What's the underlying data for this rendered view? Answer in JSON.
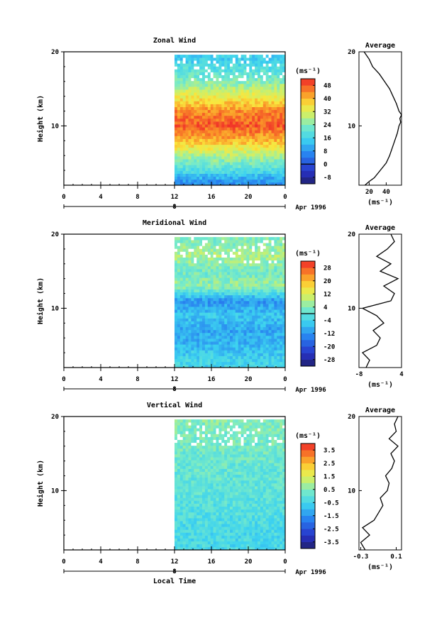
{
  "figure": {
    "xlabel_bottom": "Local Time",
    "date_label": "Apr 1996",
    "date_marker": "8",
    "unit_label": "(ms⁻¹)",
    "avg_unit_label": "(ms⁻¹)"
  },
  "chart_data": [
    {
      "type": "heatmap",
      "title": "Zonal Wind",
      "ylabel": "Height (km)",
      "xlabel": "Local Time",
      "x_ticks": [
        "0",
        "4",
        "8",
        "12",
        "16",
        "20",
        "0"
      ],
      "y_ticks": [
        "20",
        "10"
      ],
      "xlim": [
        0,
        24
      ],
      "ylim": [
        2,
        20
      ],
      "data_start_x": 12,
      "colorbar": {
        "unit": "(ms⁻¹)",
        "tick_labels": [
          "48",
          "40",
          "32",
          "24",
          "16",
          "8",
          "0",
          "-8"
        ],
        "values": [
          48,
          40,
          32,
          24,
          16,
          8,
          0,
          -8
        ],
        "range": [
          -12,
          52
        ],
        "zero_line": true
      },
      "profile_rows": [
        {
          "height": 19,
          "value": 15
        },
        {
          "height": 16,
          "value": 24
        },
        {
          "height": 14,
          "value": 34
        },
        {
          "height": 12,
          "value": 44
        },
        {
          "height": 10,
          "value": 48
        },
        {
          "height": 8,
          "value": 40
        },
        {
          "height": 6,
          "value": 28
        },
        {
          "height": 4,
          "value": 18
        },
        {
          "height": 2.5,
          "value": 8
        }
      ],
      "average": {
        "title": "Average",
        "xlabel": "(ms⁻¹)",
        "x_ticks": [
          20,
          40
        ],
        "xlim": [
          8,
          58
        ],
        "y_ticks": [
          "20",
          "10"
        ],
        "heights": [
          2.0,
          2.5,
          3.0,
          4.0,
          5.0,
          6.0,
          7.0,
          8.0,
          9.0,
          10.0,
          10.5,
          11.0,
          11.5,
          12.0,
          13.0,
          14.0,
          15.0,
          16.0,
          17.0,
          17.5,
          18.0,
          19.0,
          19.5,
          20.0
        ],
        "values": [
          15,
          20,
          26,
          33,
          40,
          44,
          47,
          50,
          53,
          55,
          57,
          56,
          58,
          55,
          52,
          48,
          44,
          38,
          32,
          28,
          24,
          20,
          17,
          14
        ]
      }
    },
    {
      "type": "heatmap",
      "title": "Meridional Wind",
      "ylabel": "Height (km)",
      "xlabel": "Local Time",
      "x_ticks": [
        "0",
        "4",
        "8",
        "12",
        "16",
        "20",
        "0"
      ],
      "y_ticks": [
        "20",
        "10"
      ],
      "xlim": [
        0,
        24
      ],
      "ylim": [
        2,
        20
      ],
      "data_start_x": 12,
      "colorbar": {
        "unit": "(ms⁻¹)",
        "tick_labels": [
          "28",
          "20",
          "12",
          "4",
          "-4",
          "-12",
          "-20",
          "-28"
        ],
        "values": [
          28,
          20,
          12,
          4,
          -4,
          -12,
          -20,
          -28
        ],
        "range": [
          -32,
          32
        ],
        "zero_line": true
      },
      "profile_rows": [
        {
          "height": 19,
          "value": 4
        },
        {
          "height": 17,
          "value": 8
        },
        {
          "height": 15,
          "value": 2
        },
        {
          "height": 13,
          "value": 6
        },
        {
          "height": 11,
          "value": -12
        },
        {
          "height": 9,
          "value": -6
        },
        {
          "height": 7,
          "value": -10
        },
        {
          "height": 5,
          "value": -8
        },
        {
          "height": 3,
          "value": -4
        }
      ],
      "average": {
        "title": "Average",
        "xlabel": "(ms⁻¹)",
        "x_ticks": [
          -8,
          4
        ],
        "xlim": [
          -8,
          4
        ],
        "y_ticks": [
          "20",
          "10"
        ],
        "heights": [
          2.0,
          3.0,
          4.0,
          5.0,
          6.0,
          7.0,
          8.0,
          9.0,
          10.0,
          11.0,
          12.0,
          13.0,
          14.0,
          15.0,
          16.0,
          17.0,
          18.0,
          19.0,
          20.0
        ],
        "values": [
          -6,
          -5,
          -7,
          -3,
          -2,
          -4,
          -1,
          -3,
          -7,
          1,
          2,
          -1,
          3,
          -2,
          1,
          -3,
          0,
          2,
          1
        ]
      }
    },
    {
      "type": "heatmap",
      "title": "Vertical Wind",
      "ylabel": "Height (km)",
      "xlabel": "Local Time",
      "x_ticks": [
        "0",
        "4",
        "8",
        "12",
        "16",
        "20",
        "0"
      ],
      "y_ticks": [
        "20",
        "10"
      ],
      "xlim": [
        0,
        24
      ],
      "ylim": [
        2,
        20
      ],
      "data_start_x": 12,
      "colorbar": {
        "unit": "(ms⁻¹)",
        "tick_labels": [
          "3.5",
          "2.5",
          "1.5",
          "0.5",
          "-0.5",
          "-1.5",
          "-2.5",
          "-3.5"
        ],
        "values": [
          3.5,
          2.5,
          1.5,
          0.5,
          -0.5,
          -1.5,
          -2.5,
          -3.5
        ],
        "range": [
          -4,
          4
        ],
        "zero_line": false
      },
      "profile_rows": [
        {
          "height": 19,
          "value": 0.5
        },
        {
          "height": 16,
          "value": 0.3
        },
        {
          "height": 13,
          "value": 0.1
        },
        {
          "height": 10,
          "value": 0.0
        },
        {
          "height": 7,
          "value": -0.2
        },
        {
          "height": 4,
          "value": -0.4
        }
      ],
      "average": {
        "title": "Average",
        "xlabel": "(ms⁻¹)",
        "x_ticks": [
          -0.3,
          0.1
        ],
        "xlim": [
          -0.32,
          0.16
        ],
        "y_ticks": [
          "20",
          "10"
        ],
        "heights": [
          2.0,
          3.0,
          4.0,
          5.0,
          6.0,
          7.0,
          8.0,
          9.0,
          10.0,
          11.0,
          12.0,
          13.0,
          14.0,
          15.0,
          16.0,
          17.0,
          18.0,
          19.0,
          20.0
        ],
        "values": [
          -0.25,
          -0.3,
          -0.2,
          -0.28,
          -0.15,
          -0.1,
          -0.05,
          -0.08,
          0.0,
          0.02,
          -0.02,
          0.05,
          0.08,
          0.04,
          0.12,
          0.02,
          0.1,
          0.08,
          0.12
        ]
      }
    }
  ]
}
